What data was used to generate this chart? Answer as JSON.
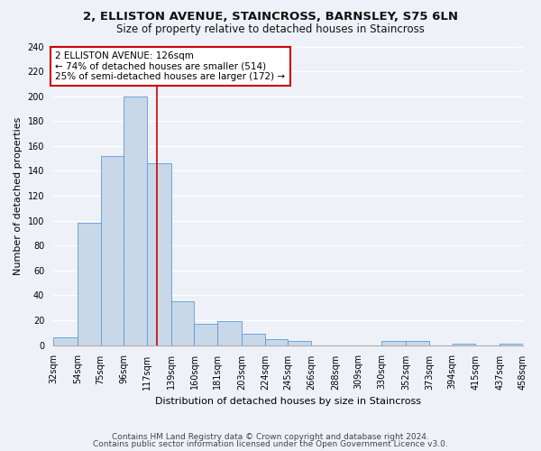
{
  "title": "2, ELLISTON AVENUE, STAINCROSS, BARNSLEY, S75 6LN",
  "subtitle": "Size of property relative to detached houses in Staincross",
  "xlabel": "Distribution of detached houses by size in Staincross",
  "ylabel": "Number of detached properties",
  "bar_color": "#c8d8e8",
  "bar_edge_color": "#5b9bd5",
  "bar_heights": [
    6,
    98,
    152,
    200,
    146,
    35,
    17,
    19,
    9,
    5,
    3,
    0,
    0,
    0,
    3,
    3,
    0,
    1,
    0,
    1
  ],
  "bin_edges": [
    32,
    54,
    75,
    96,
    117,
    139,
    160,
    181,
    203,
    224,
    245,
    266,
    288,
    309,
    330,
    352,
    373,
    394,
    415,
    437,
    458
  ],
  "tick_labels": [
    "32sqm",
    "54sqm",
    "75sqm",
    "96sqm",
    "117sqm",
    "139sqm",
    "160sqm",
    "181sqm",
    "203sqm",
    "224sqm",
    "245sqm",
    "266sqm",
    "288sqm",
    "309sqm",
    "330sqm",
    "352sqm",
    "373sqm",
    "394sqm",
    "415sqm",
    "437sqm",
    "458sqm"
  ],
  "ylim": [
    0,
    240
  ],
  "yticks": [
    0,
    20,
    40,
    60,
    80,
    100,
    120,
    140,
    160,
    180,
    200,
    220,
    240
  ],
  "vline_x": 126,
  "vline_color": "#cc0000",
  "annotation_text": "2 ELLISTON AVENUE: 126sqm\n← 74% of detached houses are smaller (514)\n25% of semi-detached houses are larger (172) →",
  "annotation_box_color": "#ffffff",
  "annotation_box_edge_color": "#cc0000",
  "footnote1": "Contains HM Land Registry data © Crown copyright and database right 2024.",
  "footnote2": "Contains public sector information licensed under the Open Government Licence v3.0.",
  "bg_color": "#eef2f8",
  "grid_color": "#ffffff",
  "title_fontsize": 9.5,
  "subtitle_fontsize": 8.5,
  "axis_label_fontsize": 8,
  "tick_fontsize": 7,
  "annotation_fontsize": 7.5,
  "footnote_fontsize": 6.5
}
